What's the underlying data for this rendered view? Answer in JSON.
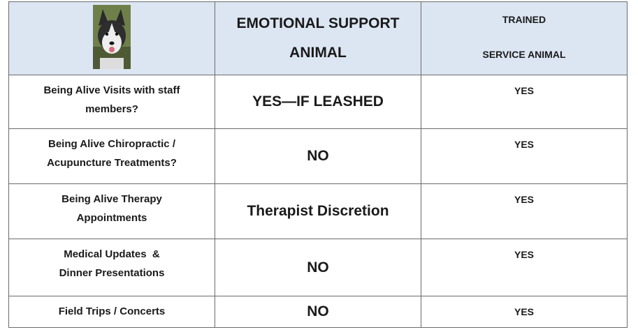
{
  "table": {
    "header": {
      "col2_lines": [
        "EMOTIONAL SUPPORT",
        "ANIMAL"
      ],
      "col3_lines": [
        "TRAINED",
        "SERVICE ANIMAL"
      ]
    },
    "rows": [
      {
        "activity": [
          "Being Alive Visits with staff",
          "members?"
        ],
        "esa": "YES—IF LEASHED",
        "service": "YES"
      },
      {
        "activity": [
          "Being Alive Chiropractic /",
          "Acupuncture Treatments?"
        ],
        "esa": "NO",
        "service": "YES"
      },
      {
        "activity": [
          "Being Alive Therapy",
          "Appointments"
        ],
        "esa": "Therapist Discretion",
        "service": "YES"
      },
      {
        "activity": [
          "Medical Updates  &",
          "Dinner Presentations"
        ],
        "esa": "NO",
        "service": "YES"
      },
      {
        "activity": [
          "Field Trips / Concerts"
        ],
        "esa": "NO",
        "service": "YES"
      }
    ]
  }
}
